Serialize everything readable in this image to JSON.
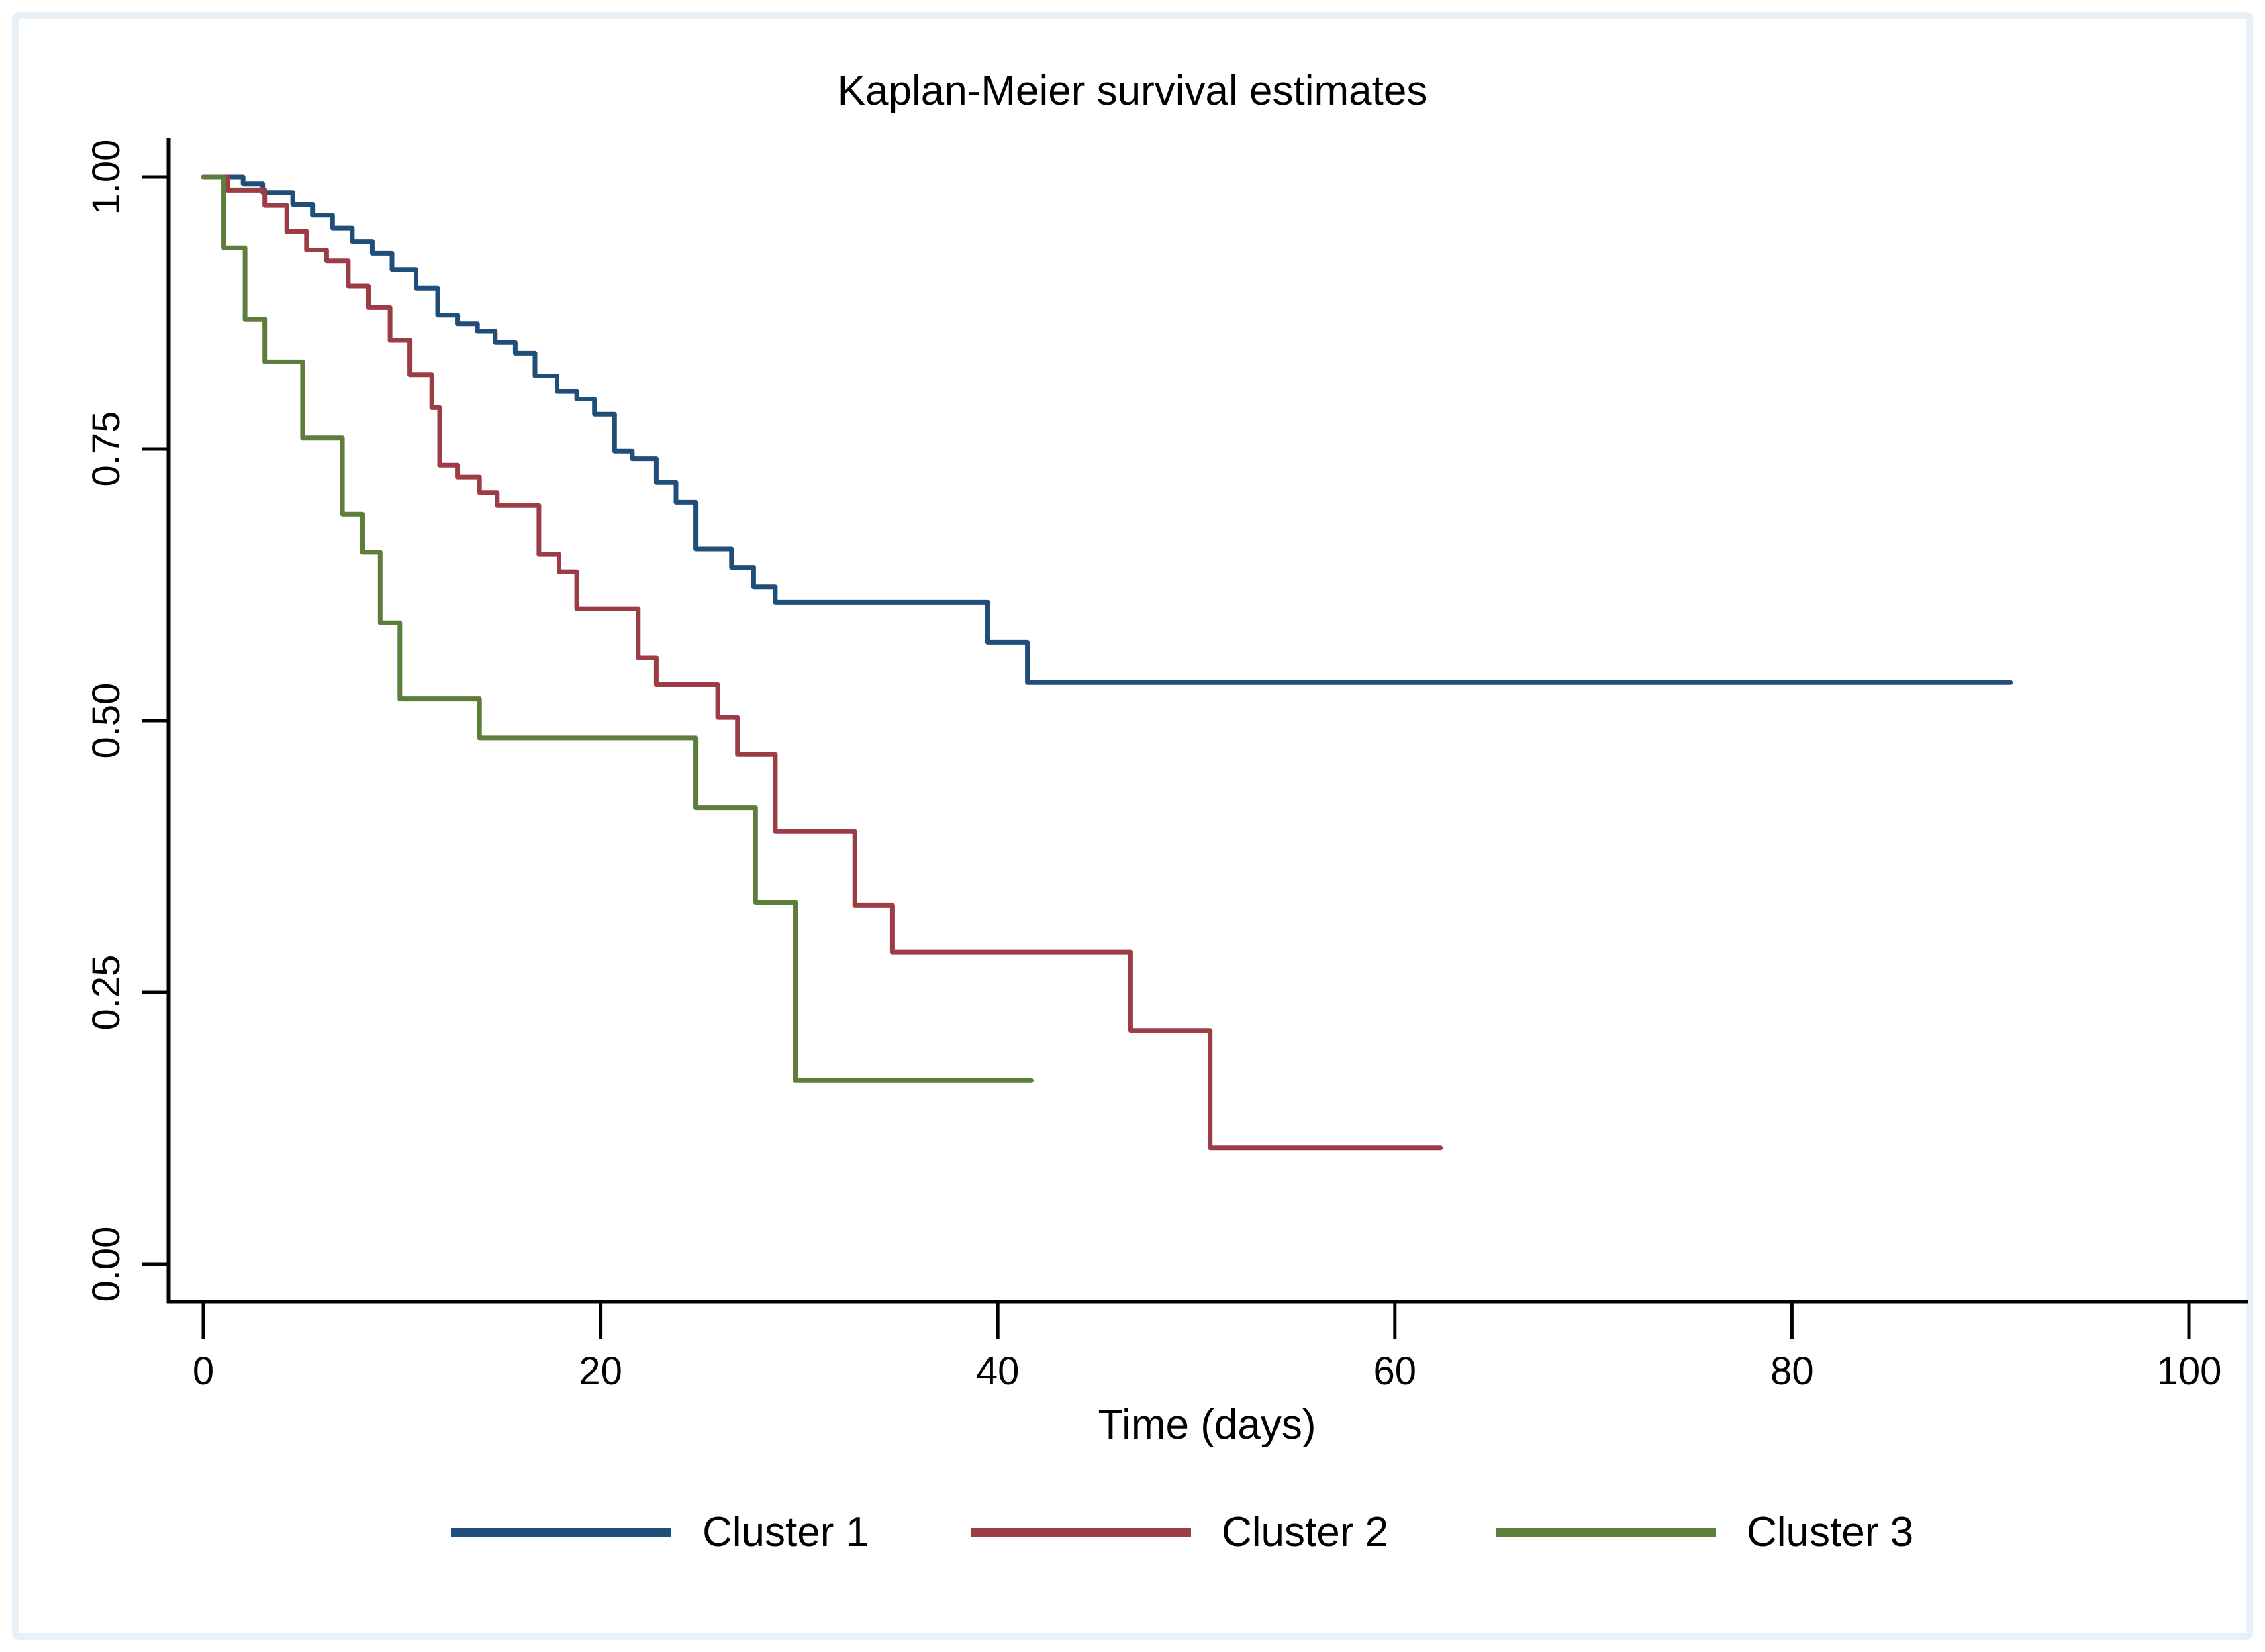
{
  "figure": {
    "title": "Kaplan-Meier survival estimates",
    "x_axis": {
      "label": "Time (days)",
      "tick_labels": [
        "0",
        "20",
        "40",
        "60",
        "80",
        "100"
      ],
      "tick_values": [
        0,
        20,
        40,
        60,
        80,
        100
      ],
      "range": [
        0,
        100
      ]
    },
    "y_axis": {
      "label": "",
      "tick_labels": [
        "0.00",
        "0.25",
        "0.50",
        "0.75",
        "1.00"
      ],
      "tick_values": [
        0,
        0.25,
        0.5,
        0.75,
        1
      ],
      "range": [
        0,
        1
      ]
    },
    "legend": [
      {
        "label": "Cluster 1",
        "color": "#1f4e79"
      },
      {
        "label": "Cluster 2",
        "color": "#9c3d46"
      },
      {
        "label": "Cluster 3",
        "color": "#5d7d3a"
      }
    ],
    "frame_color": "#e8f1f8",
    "axis_color": "#000000",
    "background_color": "#ffffff"
  },
  "chart_data": {
    "type": "line",
    "subtype": "kaplan-meier-step",
    "title": "Kaplan-Meier survival estimates",
    "xlabel": "Time (days)",
    "ylabel": "",
    "xlim": [
      0,
      100
    ],
    "ylim": [
      0,
      1
    ],
    "grid": false,
    "legend_position": "bottom",
    "series": [
      {
        "name": "Cluster 1",
        "color": "#1f4e79",
        "end_time": 91,
        "points": [
          [
            0,
            1.0
          ],
          [
            2,
            0.994
          ],
          [
            3,
            0.986
          ],
          [
            4.5,
            0.975
          ],
          [
            5.5,
            0.965
          ],
          [
            6.5,
            0.953
          ],
          [
            7.5,
            0.941
          ],
          [
            8.5,
            0.93
          ],
          [
            9.5,
            0.915
          ],
          [
            10.7,
            0.898
          ],
          [
            11.8,
            0.873
          ],
          [
            12.8,
            0.865
          ],
          [
            13.8,
            0.858
          ],
          [
            14.7,
            0.848
          ],
          [
            15.7,
            0.838
          ],
          [
            16.7,
            0.817
          ],
          [
            17.8,
            0.803
          ],
          [
            18.8,
            0.796
          ],
          [
            19.7,
            0.782
          ],
          [
            20.7,
            0.748
          ],
          [
            21.6,
            0.741
          ],
          [
            22.8,
            0.719
          ],
          [
            23.8,
            0.701
          ],
          [
            24.8,
            0.658
          ],
          [
            26.6,
            0.641
          ],
          [
            27.7,
            0.623
          ],
          [
            28.8,
            0.609
          ],
          [
            39.5,
            0.572
          ],
          [
            41.5,
            0.535
          ]
        ]
      },
      {
        "name": "Cluster 2",
        "color": "#9c3d46",
        "end_time": 62.3,
        "points": [
          [
            0,
            1.0
          ],
          [
            1.2,
            0.988
          ],
          [
            3.1,
            0.974
          ],
          [
            4.2,
            0.95
          ],
          [
            5.2,
            0.933
          ],
          [
            6.2,
            0.923
          ],
          [
            7.3,
            0.9
          ],
          [
            8.3,
            0.88
          ],
          [
            9.4,
            0.85
          ],
          [
            10.4,
            0.818
          ],
          [
            11.5,
            0.788
          ],
          [
            11.9,
            0.735
          ],
          [
            12.8,
            0.724
          ],
          [
            13.9,
            0.71
          ],
          [
            14.8,
            0.698
          ],
          [
            16.9,
            0.653
          ],
          [
            17.9,
            0.637
          ],
          [
            18.8,
            0.603
          ],
          [
            21.9,
            0.558
          ],
          [
            22.8,
            0.533
          ],
          [
            25.9,
            0.503
          ],
          [
            26.9,
            0.469
          ],
          [
            28.8,
            0.398
          ],
          [
            32.8,
            0.33
          ],
          [
            34.7,
            0.287
          ],
          [
            46.7,
            0.215
          ],
          [
            50.7,
            0.107
          ]
        ]
      },
      {
        "name": "Cluster 3",
        "color": "#5d7d3a",
        "end_time": 41.7,
        "points": [
          [
            0,
            1.0
          ],
          [
            1.0,
            0.935
          ],
          [
            2.1,
            0.869
          ],
          [
            3.1,
            0.83
          ],
          [
            5.0,
            0.76
          ],
          [
            7.0,
            0.69
          ],
          [
            8.0,
            0.655
          ],
          [
            8.9,
            0.59
          ],
          [
            9.9,
            0.52
          ],
          [
            13.9,
            0.484
          ],
          [
            24.8,
            0.42
          ],
          [
            27.8,
            0.333
          ],
          [
            29.8,
            0.169
          ]
        ]
      }
    ]
  }
}
